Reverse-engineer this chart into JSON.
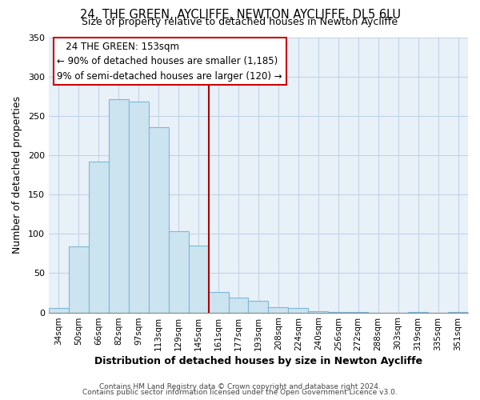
{
  "title1": "24, THE GREEN, AYCLIFFE, NEWTON AYCLIFFE, DL5 6LU",
  "title2": "Size of property relative to detached houses in Newton Aycliffe",
  "xlabel": "Distribution of detached houses by size in Newton Aycliffe",
  "ylabel": "Number of detached properties",
  "bar_labels": [
    "34sqm",
    "50sqm",
    "66sqm",
    "82sqm",
    "97sqm",
    "113sqm",
    "129sqm",
    "145sqm",
    "161sqm",
    "177sqm",
    "193sqm",
    "208sqm",
    "224sqm",
    "240sqm",
    "256sqm",
    "272sqm",
    "288sqm",
    "303sqm",
    "319sqm",
    "335sqm",
    "351sqm"
  ],
  "bar_heights": [
    6,
    84,
    192,
    271,
    268,
    236,
    103,
    85,
    26,
    19,
    15,
    7,
    6,
    2,
    1,
    1,
    0,
    0,
    1,
    0,
    1
  ],
  "bar_color": "#cce4f0",
  "bar_edge_color": "#7cb9d8",
  "vline_color": "#aa0000",
  "ylim": [
    0,
    350
  ],
  "yticks": [
    0,
    50,
    100,
    150,
    200,
    250,
    300,
    350
  ],
  "annotation_title": "24 THE GREEN: 153sqm",
  "annotation_line1": "← 90% of detached houses are smaller (1,185)",
  "annotation_line2": "9% of semi-detached houses are larger (120) →",
  "annotation_box_color": "#ffffff",
  "annotation_box_edge": "#cc0000",
  "footer1": "Contains HM Land Registry data © Crown copyright and database right 2024.",
  "footer2": "Contains public sector information licensed under the Open Government Licence v3.0.",
  "bg_color": "#e8f0f8"
}
